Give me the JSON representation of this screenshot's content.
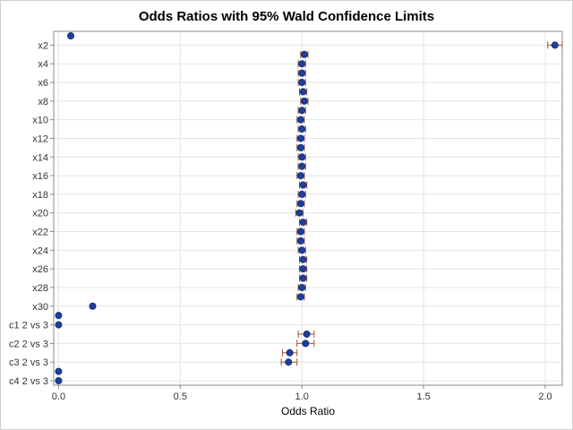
{
  "chart_data": {
    "type": "scatter",
    "title": "Odds Ratios with 95% Wald Confidence Limits",
    "xlabel": "Odds Ratio",
    "ylabel": "",
    "xlim": [
      -0.02,
      2.07
    ],
    "xticks": [
      0.0,
      0.5,
      1.0,
      1.5,
      2.0
    ],
    "xtick_labels": [
      "0.0",
      "0.5",
      "1.0",
      "1.5",
      "2.0"
    ],
    "grid": true,
    "legend": "none",
    "colors": {
      "marker": "#1f3f9a",
      "marker_edge": "#0b2a7a",
      "ci": "#a0522d",
      "grid": "#e4e4e4",
      "axis": "#888888"
    },
    "rows": [
      {
        "label": "",
        "estimate": 0.05,
        "lower": null,
        "upper": null
      },
      {
        "label": "x2",
        "estimate": 2.04,
        "lower": 2.01,
        "upper": 2.07
      },
      {
        "label": "",
        "estimate": 1.01,
        "lower": 0.995,
        "upper": 1.025
      },
      {
        "label": "x4",
        "estimate": 1.0,
        "lower": 0.985,
        "upper": 1.015
      },
      {
        "label": "",
        "estimate": 1.0,
        "lower": 0.985,
        "upper": 1.015
      },
      {
        "label": "x6",
        "estimate": 1.0,
        "lower": 0.985,
        "upper": 1.015
      },
      {
        "label": "",
        "estimate": 1.005,
        "lower": 0.99,
        "upper": 1.02
      },
      {
        "label": "x8",
        "estimate": 1.01,
        "lower": 0.995,
        "upper": 1.025
      },
      {
        "label": "",
        "estimate": 1.0,
        "lower": 0.985,
        "upper": 1.015
      },
      {
        "label": "x10",
        "estimate": 0.995,
        "lower": 0.98,
        "upper": 1.01
      },
      {
        "label": "",
        "estimate": 1.0,
        "lower": 0.985,
        "upper": 1.015
      },
      {
        "label": "x12",
        "estimate": 0.995,
        "lower": 0.98,
        "upper": 1.01
      },
      {
        "label": "",
        "estimate": 0.995,
        "lower": 0.98,
        "upper": 1.01
      },
      {
        "label": "x14",
        "estimate": 1.0,
        "lower": 0.985,
        "upper": 1.015
      },
      {
        "label": "",
        "estimate": 1.0,
        "lower": 0.985,
        "upper": 1.015
      },
      {
        "label": "x16",
        "estimate": 0.995,
        "lower": 0.98,
        "upper": 1.01
      },
      {
        "label": "",
        "estimate": 1.005,
        "lower": 0.99,
        "upper": 1.02
      },
      {
        "label": "x18",
        "estimate": 1.0,
        "lower": 0.985,
        "upper": 1.015
      },
      {
        "label": "",
        "estimate": 0.995,
        "lower": 0.98,
        "upper": 1.01
      },
      {
        "label": "x20",
        "estimate": 0.99,
        "lower": 0.975,
        "upper": 1.005
      },
      {
        "label": "",
        "estimate": 1.005,
        "lower": 0.99,
        "upper": 1.02
      },
      {
        "label": "x22",
        "estimate": 0.995,
        "lower": 0.98,
        "upper": 1.01
      },
      {
        "label": "",
        "estimate": 0.995,
        "lower": 0.98,
        "upper": 1.01
      },
      {
        "label": "x24",
        "estimate": 1.0,
        "lower": 0.985,
        "upper": 1.015
      },
      {
        "label": "",
        "estimate": 1.005,
        "lower": 0.99,
        "upper": 1.02
      },
      {
        "label": "x26",
        "estimate": 1.005,
        "lower": 0.99,
        "upper": 1.02
      },
      {
        "label": "",
        "estimate": 1.005,
        "lower": 0.99,
        "upper": 1.02
      },
      {
        "label": "x28",
        "estimate": 1.0,
        "lower": 0.985,
        "upper": 1.015
      },
      {
        "label": "",
        "estimate": 0.995,
        "lower": 0.98,
        "upper": 1.01
      },
      {
        "label": "x30",
        "estimate": 0.14,
        "lower": null,
        "upper": null
      },
      {
        "label": "",
        "estimate": 0.0,
        "lower": null,
        "upper": null
      },
      {
        "label": "c1 2 vs 3",
        "estimate": 0.0,
        "lower": null,
        "upper": null
      },
      {
        "label": "",
        "estimate": 1.02,
        "lower": 0.985,
        "upper": 1.05
      },
      {
        "label": "c2 2 vs 3",
        "estimate": 1.015,
        "lower": 0.98,
        "upper": 1.05
      },
      {
        "label": "",
        "estimate": 0.95,
        "lower": 0.92,
        "upper": 0.98
      },
      {
        "label": "c3 2 vs 3",
        "estimate": 0.945,
        "lower": 0.915,
        "upper": 0.98
      },
      {
        "label": "",
        "estimate": 0.0,
        "lower": null,
        "upper": null
      },
      {
        "label": "c4 2 vs 3",
        "estimate": 0.0,
        "lower": null,
        "upper": null
      }
    ]
  }
}
